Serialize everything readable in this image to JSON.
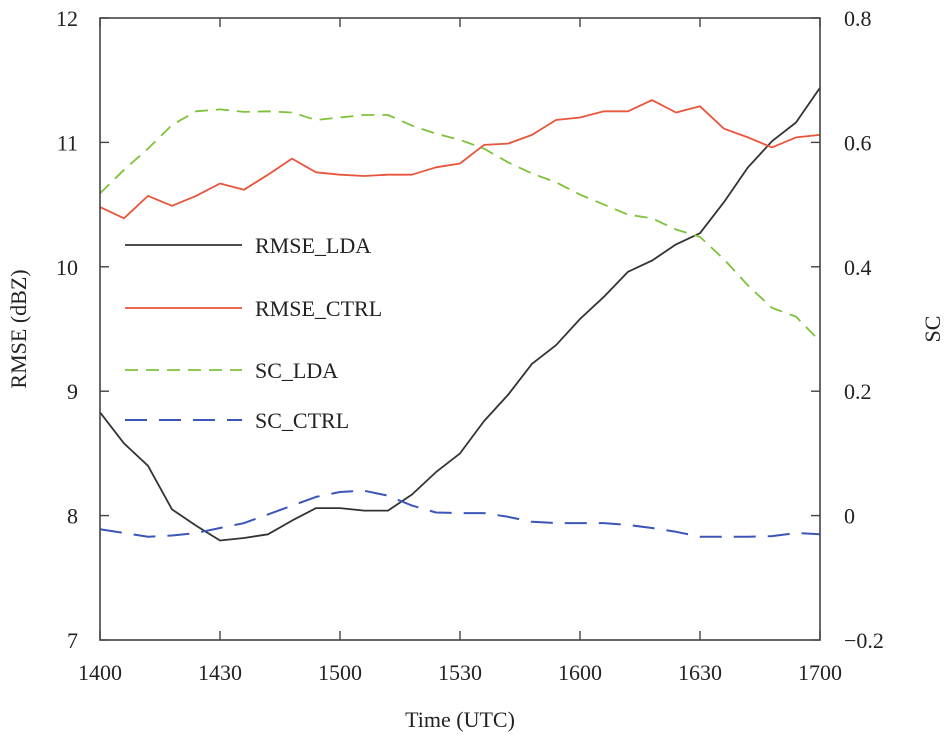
{
  "chart_data": {
    "type": "line",
    "xlabel": "Time (UTC)",
    "ylabel_left": "RMSE (dBZ)",
    "ylabel_right": "SC",
    "x_ticks": [
      "1400",
      "1430",
      "1500",
      "1530",
      "1600",
      "1630",
      "1700"
    ],
    "y_left_ticks": [
      "7",
      "8",
      "9",
      "10",
      "11",
      "12"
    ],
    "y_right_ticks": [
      "−0.2",
      "0",
      "0.2",
      "0.4",
      "0.6",
      "0.8"
    ],
    "xlim": [
      0,
      180
    ],
    "ylim_left": [
      7,
      12
    ],
    "ylim_right": [
      -0.2,
      0.8
    ],
    "grid": false,
    "legend_position": "left",
    "series": [
      {
        "name": "RMSE_LDA",
        "axis": "left",
        "color": "#333333",
        "style": "solid",
        "x": [
          0,
          6,
          12,
          18,
          24,
          30,
          36,
          42,
          48,
          54,
          60,
          66,
          72,
          78,
          84,
          90,
          96,
          102,
          108,
          114,
          120,
          126,
          132,
          138,
          144,
          150,
          156,
          162,
          168,
          174,
          180
        ],
        "values": [
          8.83,
          8.58,
          8.4,
          8.05,
          7.92,
          7.8,
          7.82,
          7.85,
          7.96,
          8.06,
          8.06,
          8.04,
          8.04,
          8.17,
          8.35,
          8.5,
          8.76,
          8.97,
          9.22,
          9.37,
          9.58,
          9.76,
          9.96,
          10.05,
          10.18,
          10.27,
          10.52,
          10.8,
          11.01,
          11.16,
          11.44
        ]
      },
      {
        "name": "RMSE_CTRL",
        "axis": "left",
        "color": "#e8553b",
        "style": "solid",
        "x": [
          0,
          6,
          12,
          18,
          24,
          30,
          36,
          42,
          48,
          54,
          60,
          66,
          72,
          78,
          84,
          90,
          96,
          102,
          108,
          114,
          120,
          126,
          132,
          138,
          144,
          150,
          156,
          162,
          168,
          174,
          180
        ],
        "values": [
          10.48,
          10.39,
          10.57,
          10.49,
          10.57,
          10.67,
          10.62,
          10.74,
          10.87,
          10.76,
          10.74,
          10.73,
          10.74,
          10.74,
          10.8,
          10.83,
          10.98,
          10.99,
          11.06,
          11.18,
          11.2,
          11.25,
          11.25,
          11.34,
          11.24,
          11.29,
          11.11,
          11.04,
          10.96,
          11.04,
          11.06
        ]
      },
      {
        "name": "SC_LDA",
        "axis": "right",
        "color": "#7ec23c",
        "style": "dashed",
        "x": [
          0,
          6,
          12,
          18,
          24,
          30,
          36,
          42,
          48,
          54,
          60,
          66,
          72,
          78,
          84,
          90,
          96,
          102,
          108,
          114,
          120,
          126,
          132,
          138,
          144,
          150,
          156,
          162,
          168,
          174,
          180
        ],
        "values": [
          0.518,
          0.556,
          0.59,
          0.628,
          0.65,
          0.653,
          0.649,
          0.65,
          0.648,
          0.636,
          0.64,
          0.644,
          0.644,
          0.627,
          0.614,
          0.604,
          0.59,
          0.568,
          0.55,
          0.536,
          0.516,
          0.5,
          0.484,
          0.478,
          0.46,
          0.448,
          0.412,
          0.37,
          0.334,
          0.32,
          0.28
        ]
      },
      {
        "name": "SC_CTRL",
        "axis": "right",
        "color": "#3b55b8",
        "style": "dashed",
        "x": [
          0,
          6,
          12,
          18,
          24,
          30,
          36,
          42,
          48,
          54,
          60,
          66,
          72,
          78,
          84,
          90,
          96,
          102,
          108,
          114,
          120,
          126,
          132,
          138,
          144,
          150,
          156,
          162,
          168,
          174,
          180
        ],
        "values": [
          -0.022,
          -0.028,
          -0.034,
          -0.032,
          -0.028,
          -0.02,
          -0.012,
          0.002,
          0.016,
          0.03,
          0.038,
          0.04,
          0.032,
          0.016,
          0.005,
          0.004,
          0.004,
          -0.002,
          -0.01,
          -0.012,
          -0.012,
          -0.012,
          -0.015,
          -0.02,
          -0.026,
          -0.034,
          -0.034,
          -0.034,
          -0.033,
          -0.028,
          -0.03
        ]
      }
    ]
  }
}
